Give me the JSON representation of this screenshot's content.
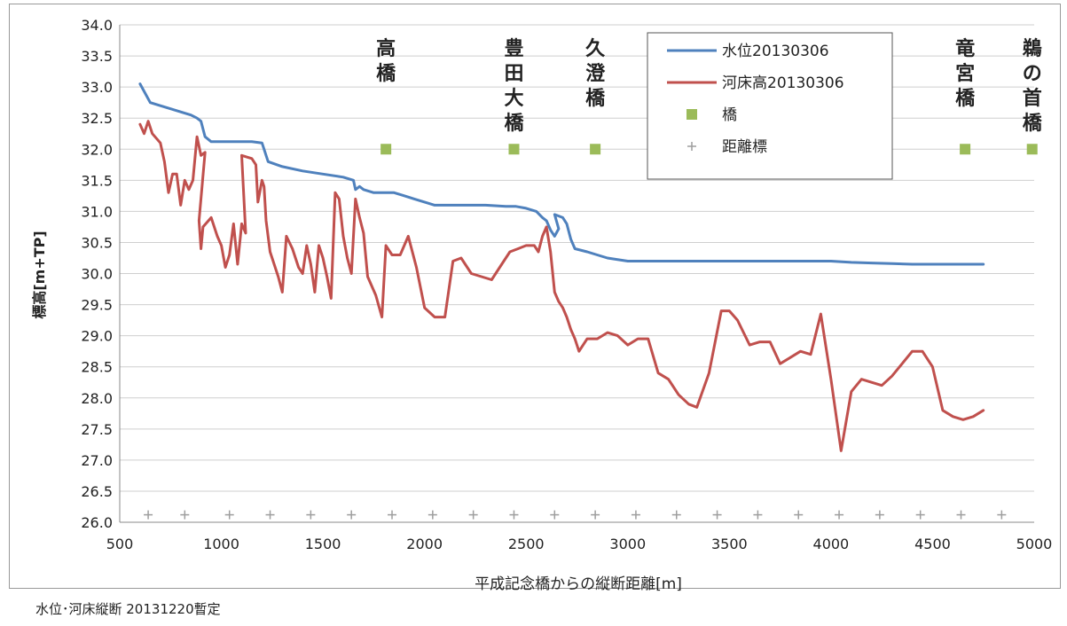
{
  "caption": "水位･河床縦断 20131220暫定",
  "chart_data": {
    "type": "line",
    "xlabel": "平成記念橋からの縦断距離[m]",
    "ylabel": "標高[m+TP]",
    "xlim": [
      500,
      5000
    ],
    "ylim": [
      26.0,
      34.0
    ],
    "x_ticks": [
      500,
      1000,
      1500,
      2000,
      2500,
      3000,
      3500,
      4000,
      4500,
      5000
    ],
    "y_ticks": [
      26.0,
      26.5,
      27.0,
      27.5,
      28.0,
      28.5,
      29.0,
      29.5,
      30.0,
      30.5,
      31.0,
      31.5,
      32.0,
      32.5,
      33.0,
      33.5,
      34.0
    ],
    "grid": "horizontal",
    "legend_position": "top-right",
    "legend": [
      {
        "label": "水位20130306",
        "marker": "line",
        "color": "#4f81bd"
      },
      {
        "label": "河床高20130306",
        "marker": "line",
        "color": "#c0504d"
      },
      {
        "label": "橋",
        "marker": "square",
        "color": "#9bbb59"
      },
      {
        "label": "距離標",
        "marker": "plus",
        "color": "#9e9e9e"
      }
    ],
    "series": [
      {
        "name": "水位20130306",
        "color": "#4f81bd",
        "points": [
          [
            600,
            33.05
          ],
          [
            650,
            32.75
          ],
          [
            700,
            32.7
          ],
          [
            750,
            32.65
          ],
          [
            800,
            32.6
          ],
          [
            850,
            32.55
          ],
          [
            880,
            32.5
          ],
          [
            900,
            32.45
          ],
          [
            920,
            32.2
          ],
          [
            950,
            32.12
          ],
          [
            1000,
            32.12
          ],
          [
            1100,
            32.12
          ],
          [
            1150,
            32.12
          ],
          [
            1200,
            32.1
          ],
          [
            1230,
            31.8
          ],
          [
            1300,
            31.72
          ],
          [
            1400,
            31.65
          ],
          [
            1500,
            31.6
          ],
          [
            1600,
            31.55
          ],
          [
            1650,
            31.5
          ],
          [
            1660,
            31.35
          ],
          [
            1680,
            31.4
          ],
          [
            1700,
            31.35
          ],
          [
            1750,
            31.3
          ],
          [
            1800,
            31.3
          ],
          [
            1850,
            31.3
          ],
          [
            1900,
            31.25
          ],
          [
            1950,
            31.2
          ],
          [
            2000,
            31.15
          ],
          [
            2050,
            31.1
          ],
          [
            2100,
            31.1
          ],
          [
            2200,
            31.1
          ],
          [
            2300,
            31.1
          ],
          [
            2400,
            31.08
          ],
          [
            2450,
            31.08
          ],
          [
            2500,
            31.05
          ],
          [
            2550,
            31.0
          ],
          [
            2580,
            30.9
          ],
          [
            2600,
            30.85
          ],
          [
            2620,
            30.7
          ],
          [
            2640,
            30.6
          ],
          [
            2660,
            30.72
          ],
          [
            2640,
            30.95
          ],
          [
            2680,
            30.9
          ],
          [
            2700,
            30.8
          ],
          [
            2720,
            30.55
          ],
          [
            2740,
            30.4
          ],
          [
            2800,
            30.35
          ],
          [
            2850,
            30.3
          ],
          [
            2900,
            30.25
          ],
          [
            3000,
            30.2
          ],
          [
            3100,
            30.2
          ],
          [
            3200,
            30.2
          ],
          [
            3300,
            30.2
          ],
          [
            3400,
            30.2
          ],
          [
            3500,
            30.2
          ],
          [
            3600,
            30.2
          ],
          [
            3700,
            30.2
          ],
          [
            3800,
            30.2
          ],
          [
            3900,
            30.2
          ],
          [
            4000,
            30.2
          ],
          [
            4100,
            30.18
          ],
          [
            4200,
            30.17
          ],
          [
            4300,
            30.16
          ],
          [
            4400,
            30.15
          ],
          [
            4500,
            30.15
          ],
          [
            4600,
            30.15
          ],
          [
            4700,
            30.15
          ],
          [
            4750,
            30.15
          ]
        ]
      },
      {
        "name": "河床高20130306",
        "color": "#c0504d",
        "points": [
          [
            600,
            32.4
          ],
          [
            620,
            32.25
          ],
          [
            640,
            32.45
          ],
          [
            660,
            32.25
          ],
          [
            700,
            32.1
          ],
          [
            720,
            31.8
          ],
          [
            740,
            31.3
          ],
          [
            760,
            31.6
          ],
          [
            780,
            31.6
          ],
          [
            800,
            31.1
          ],
          [
            820,
            31.5
          ],
          [
            840,
            31.35
          ],
          [
            860,
            31.5
          ],
          [
            880,
            32.2
          ],
          [
            900,
            31.9
          ],
          [
            920,
            31.95
          ],
          [
            890,
            30.85
          ],
          [
            900,
            30.4
          ],
          [
            910,
            30.75
          ],
          [
            950,
            30.9
          ],
          [
            980,
            30.6
          ],
          [
            1000,
            30.45
          ],
          [
            1020,
            30.1
          ],
          [
            1040,
            30.3
          ],
          [
            1060,
            30.8
          ],
          [
            1080,
            30.15
          ],
          [
            1100,
            30.8
          ],
          [
            1120,
            30.65
          ],
          [
            1100,
            31.9
          ],
          [
            1150,
            31.85
          ],
          [
            1170,
            31.75
          ],
          [
            1180,
            31.15
          ],
          [
            1200,
            31.5
          ],
          [
            1210,
            31.4
          ],
          [
            1220,
            30.85
          ],
          [
            1240,
            30.35
          ],
          [
            1280,
            29.95
          ],
          [
            1300,
            29.7
          ],
          [
            1320,
            30.6
          ],
          [
            1350,
            30.4
          ],
          [
            1380,
            30.1
          ],
          [
            1400,
            30.0
          ],
          [
            1420,
            30.45
          ],
          [
            1440,
            30.15
          ],
          [
            1460,
            29.7
          ],
          [
            1480,
            30.45
          ],
          [
            1500,
            30.25
          ],
          [
            1520,
            29.95
          ],
          [
            1540,
            29.6
          ],
          [
            1560,
            31.3
          ],
          [
            1580,
            31.2
          ],
          [
            1600,
            30.6
          ],
          [
            1620,
            30.25
          ],
          [
            1640,
            30.0
          ],
          [
            1660,
            31.2
          ],
          [
            1680,
            30.9
          ],
          [
            1700,
            30.65
          ],
          [
            1720,
            29.95
          ],
          [
            1760,
            29.65
          ],
          [
            1790,
            29.3
          ],
          [
            1810,
            30.45
          ],
          [
            1840,
            30.3
          ],
          [
            1880,
            30.3
          ],
          [
            1920,
            30.6
          ],
          [
            1960,
            30.1
          ],
          [
            2000,
            29.45
          ],
          [
            2050,
            29.3
          ],
          [
            2100,
            29.3
          ],
          [
            2140,
            30.2
          ],
          [
            2180,
            30.25
          ],
          [
            2230,
            30.0
          ],
          [
            2280,
            29.95
          ],
          [
            2330,
            29.9
          ],
          [
            2380,
            30.15
          ],
          [
            2420,
            30.35
          ],
          [
            2460,
            30.4
          ],
          [
            2500,
            30.45
          ],
          [
            2540,
            30.45
          ],
          [
            2560,
            30.35
          ],
          [
            2580,
            30.6
          ],
          [
            2600,
            30.75
          ],
          [
            2620,
            30.35
          ],
          [
            2640,
            29.7
          ],
          [
            2660,
            29.55
          ],
          [
            2680,
            29.45
          ],
          [
            2700,
            29.3
          ],
          [
            2720,
            29.1
          ],
          [
            2740,
            28.95
          ],
          [
            2760,
            28.75
          ],
          [
            2800,
            28.95
          ],
          [
            2850,
            28.95
          ],
          [
            2900,
            29.05
          ],
          [
            2950,
            29.0
          ],
          [
            3000,
            28.85
          ],
          [
            3050,
            28.95
          ],
          [
            3100,
            28.95
          ],
          [
            3150,
            28.4
          ],
          [
            3200,
            28.3
          ],
          [
            3250,
            28.05
          ],
          [
            3300,
            27.9
          ],
          [
            3340,
            27.85
          ],
          [
            3400,
            28.4
          ],
          [
            3460,
            29.4
          ],
          [
            3500,
            29.4
          ],
          [
            3540,
            29.25
          ],
          [
            3600,
            28.85
          ],
          [
            3650,
            28.9
          ],
          [
            3700,
            28.9
          ],
          [
            3750,
            28.55
          ],
          [
            3800,
            28.65
          ],
          [
            3850,
            28.75
          ],
          [
            3900,
            28.7
          ],
          [
            3950,
            29.35
          ],
          [
            4000,
            28.3
          ],
          [
            4050,
            27.15
          ],
          [
            4100,
            28.1
          ],
          [
            4150,
            28.3
          ],
          [
            4200,
            28.25
          ],
          [
            4250,
            28.2
          ],
          [
            4300,
            28.35
          ],
          [
            4350,
            28.55
          ],
          [
            4400,
            28.75
          ],
          [
            4450,
            28.75
          ],
          [
            4500,
            28.5
          ],
          [
            4550,
            27.8
          ],
          [
            4600,
            27.7
          ],
          [
            4650,
            27.65
          ],
          [
            4700,
            27.7
          ],
          [
            4750,
            27.8
          ]
        ]
      },
      {
        "name": "橋",
        "color": "#9bbb59",
        "points": [
          [
            1810,
            32.0
          ],
          [
            2440,
            32.0
          ],
          [
            2840,
            32.0
          ],
          [
            4660,
            32.0
          ],
          [
            4990,
            32.0
          ]
        ]
      },
      {
        "name": "距離標",
        "color": "#9e9e9e",
        "points": [
          [
            640,
            26.12
          ],
          [
            820,
            26.12
          ],
          [
            1040,
            26.12
          ],
          [
            1240,
            26.12
          ],
          [
            1440,
            26.12
          ],
          [
            1640,
            26.12
          ],
          [
            1840,
            26.12
          ],
          [
            2040,
            26.12
          ],
          [
            2240,
            26.12
          ],
          [
            2440,
            26.12
          ],
          [
            2640,
            26.12
          ],
          [
            2840,
            26.12
          ],
          [
            3040,
            26.12
          ],
          [
            3240,
            26.12
          ],
          [
            3440,
            26.12
          ],
          [
            3640,
            26.12
          ],
          [
            3840,
            26.12
          ],
          [
            4040,
            26.12
          ],
          [
            4240,
            26.12
          ],
          [
            4440,
            26.12
          ],
          [
            4640,
            26.12
          ],
          [
            4840,
            26.12
          ]
        ]
      }
    ],
    "bridge_labels": [
      {
        "x": 1810,
        "text": "高橋"
      },
      {
        "x": 2440,
        "text": "豊田大橋"
      },
      {
        "x": 2840,
        "text": "久澄橋"
      },
      {
        "x": 4660,
        "text": "竜宮橋"
      },
      {
        "x": 4990,
        "text": "鵜の首橋"
      }
    ]
  }
}
